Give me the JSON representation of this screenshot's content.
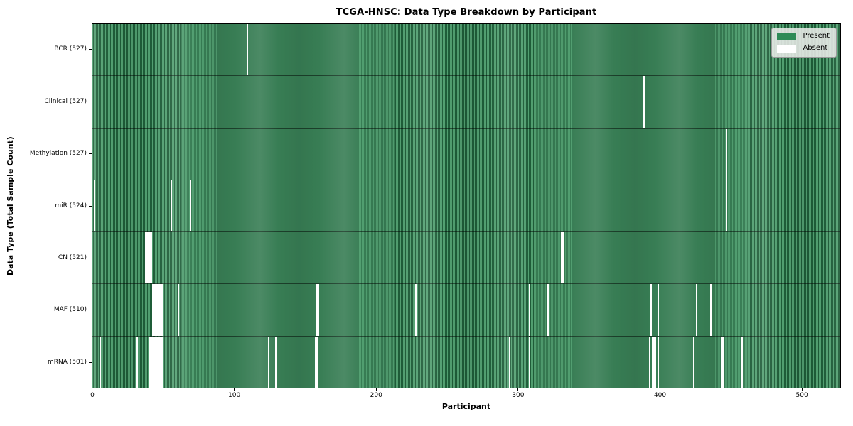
{
  "figure": {
    "title": "TCGA-HNSC: Data Type Breakdown by Participant",
    "xlabel": "Participant",
    "ylabel": "Data Type (Total Sample Count)"
  },
  "legend": {
    "items": [
      {
        "label": "Present",
        "color": "#2e8b57"
      },
      {
        "label": "Absent",
        "color": "#ffffff"
      }
    ]
  },
  "chart_data": {
    "type": "heatmap",
    "title": "TCGA-HNSC: Data Type Breakdown by Participant",
    "xlabel": "Participant",
    "ylabel": "Data Type (Total Sample Count)",
    "legend": [
      "Present",
      "Absent"
    ],
    "legend_position": "upper right",
    "grid": false,
    "n_participants": 528,
    "xlim": [
      0,
      528
    ],
    "x_ticks": [
      0,
      100,
      200,
      300,
      400,
      500
    ],
    "present_color": "#2e8b57",
    "absent_color": "#ffffff",
    "rows": [
      {
        "data_type": "BCR",
        "label": "BCR (527)",
        "present_count": 527,
        "absent_participants": [
          109
        ]
      },
      {
        "data_type": "Clinical",
        "label": "Clinical (527)",
        "present_count": 527,
        "absent_participants": [
          389
        ]
      },
      {
        "data_type": "Methylation",
        "label": "Methylation (527)",
        "present_count": 527,
        "absent_participants": [
          447
        ]
      },
      {
        "data_type": "miR",
        "label": "miR (524)",
        "present_count": 524,
        "absent_participants": [
          1,
          55,
          69,
          447
        ]
      },
      {
        "data_type": "CN",
        "label": "CN (521)",
        "present_count": 521,
        "absent_participants": [
          37,
          38,
          39,
          40,
          41,
          331,
          332
        ]
      },
      {
        "data_type": "MAF",
        "label": "MAF (510)",
        "present_count": 510,
        "absent_participants": [
          42,
          43,
          44,
          45,
          46,
          47,
          48,
          49,
          60,
          158,
          159,
          228,
          308,
          321,
          394,
          399,
          426,
          436
        ]
      },
      {
        "data_type": "mRNA",
        "label": "mRNA (501)",
        "present_count": 501,
        "absent_participants": [
          5,
          31,
          40,
          41,
          42,
          43,
          44,
          45,
          46,
          47,
          48,
          49,
          124,
          129,
          157,
          158,
          294,
          308,
          393,
          395,
          396,
          397,
          399,
          424,
          444,
          445,
          458
        ]
      }
    ]
  }
}
